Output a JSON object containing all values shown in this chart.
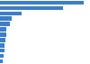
{
  "values": [
    886,
    668,
    224,
    126,
    105,
    69,
    63,
    55,
    48,
    43,
    38,
    30
  ],
  "bar_color": "#3a7ecf",
  "background_color": "#ffffff",
  "xlim": [
    0,
    950
  ],
  "bar_height": 0.75,
  "figsize": [
    1.0,
    0.71
  ],
  "dpi": 100
}
